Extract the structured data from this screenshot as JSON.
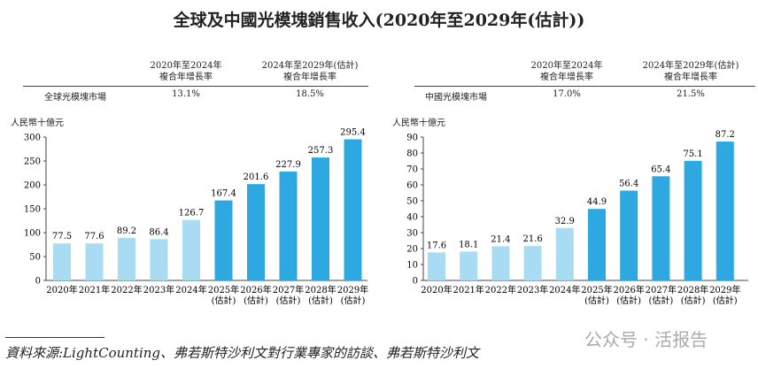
{
  "title": "全球及中國光模塊銷售收入(2020年至2029年(估計))",
  "cagr_headers": [
    "2020年至2024年\n複合年增長率",
    "2024年至2029年(估計)\n複合年增長率"
  ],
  "left_table": {
    "row_label": "全球光模塊市場",
    "values": [
      "13.1%",
      "18.5%"
    ]
  },
  "right_table": {
    "row_label": "中國光模塊市場",
    "values": [
      "17.0%",
      "21.5%"
    ]
  },
  "colors": {
    "historical": "#a9dcf2",
    "forecast": "#2ea8e0"
  },
  "chart_data": [
    {
      "type": "bar",
      "ylabel": "人民幣十億元",
      "ylim": [
        0,
        300
      ],
      "yticks": [
        0,
        50,
        100,
        150,
        200,
        250,
        300
      ],
      "categories": [
        "2020年",
        "2021年",
        "2022年",
        "2023年",
        "2024年",
        "2025年\n(估計)",
        "2026年\n(估計)",
        "2027年\n(估計)",
        "2028年\n(估計)",
        "2029年\n(估計)"
      ],
      "values": [
        77.5,
        77.6,
        89.2,
        86.4,
        126.7,
        167.4,
        201.6,
        227.9,
        257.3,
        295.4
      ],
      "forecast_from_index": 5
    },
    {
      "type": "bar",
      "ylabel": "人民幣十億元",
      "ylim": [
        0,
        90
      ],
      "yticks": [
        0,
        10,
        20,
        30,
        40,
        50,
        60,
        70,
        80,
        90
      ],
      "categories": [
        "2020年",
        "2021年",
        "2022年",
        "2023年",
        "2024年",
        "2025年\n(估計)",
        "2026年\n(估計)",
        "2027年\n(估計)",
        "2028年\n(估計)",
        "2029年\n(估計)"
      ],
      "values": [
        17.6,
        18.1,
        21.4,
        21.6,
        32.9,
        44.9,
        56.4,
        65.4,
        75.1,
        87.2
      ],
      "forecast_from_index": 5
    }
  ],
  "source": "資料來源:LightCounting、弗若斯特沙利文對行業專家的訪談、弗若斯特沙利文",
  "watermark": "公众号 · 活报告"
}
